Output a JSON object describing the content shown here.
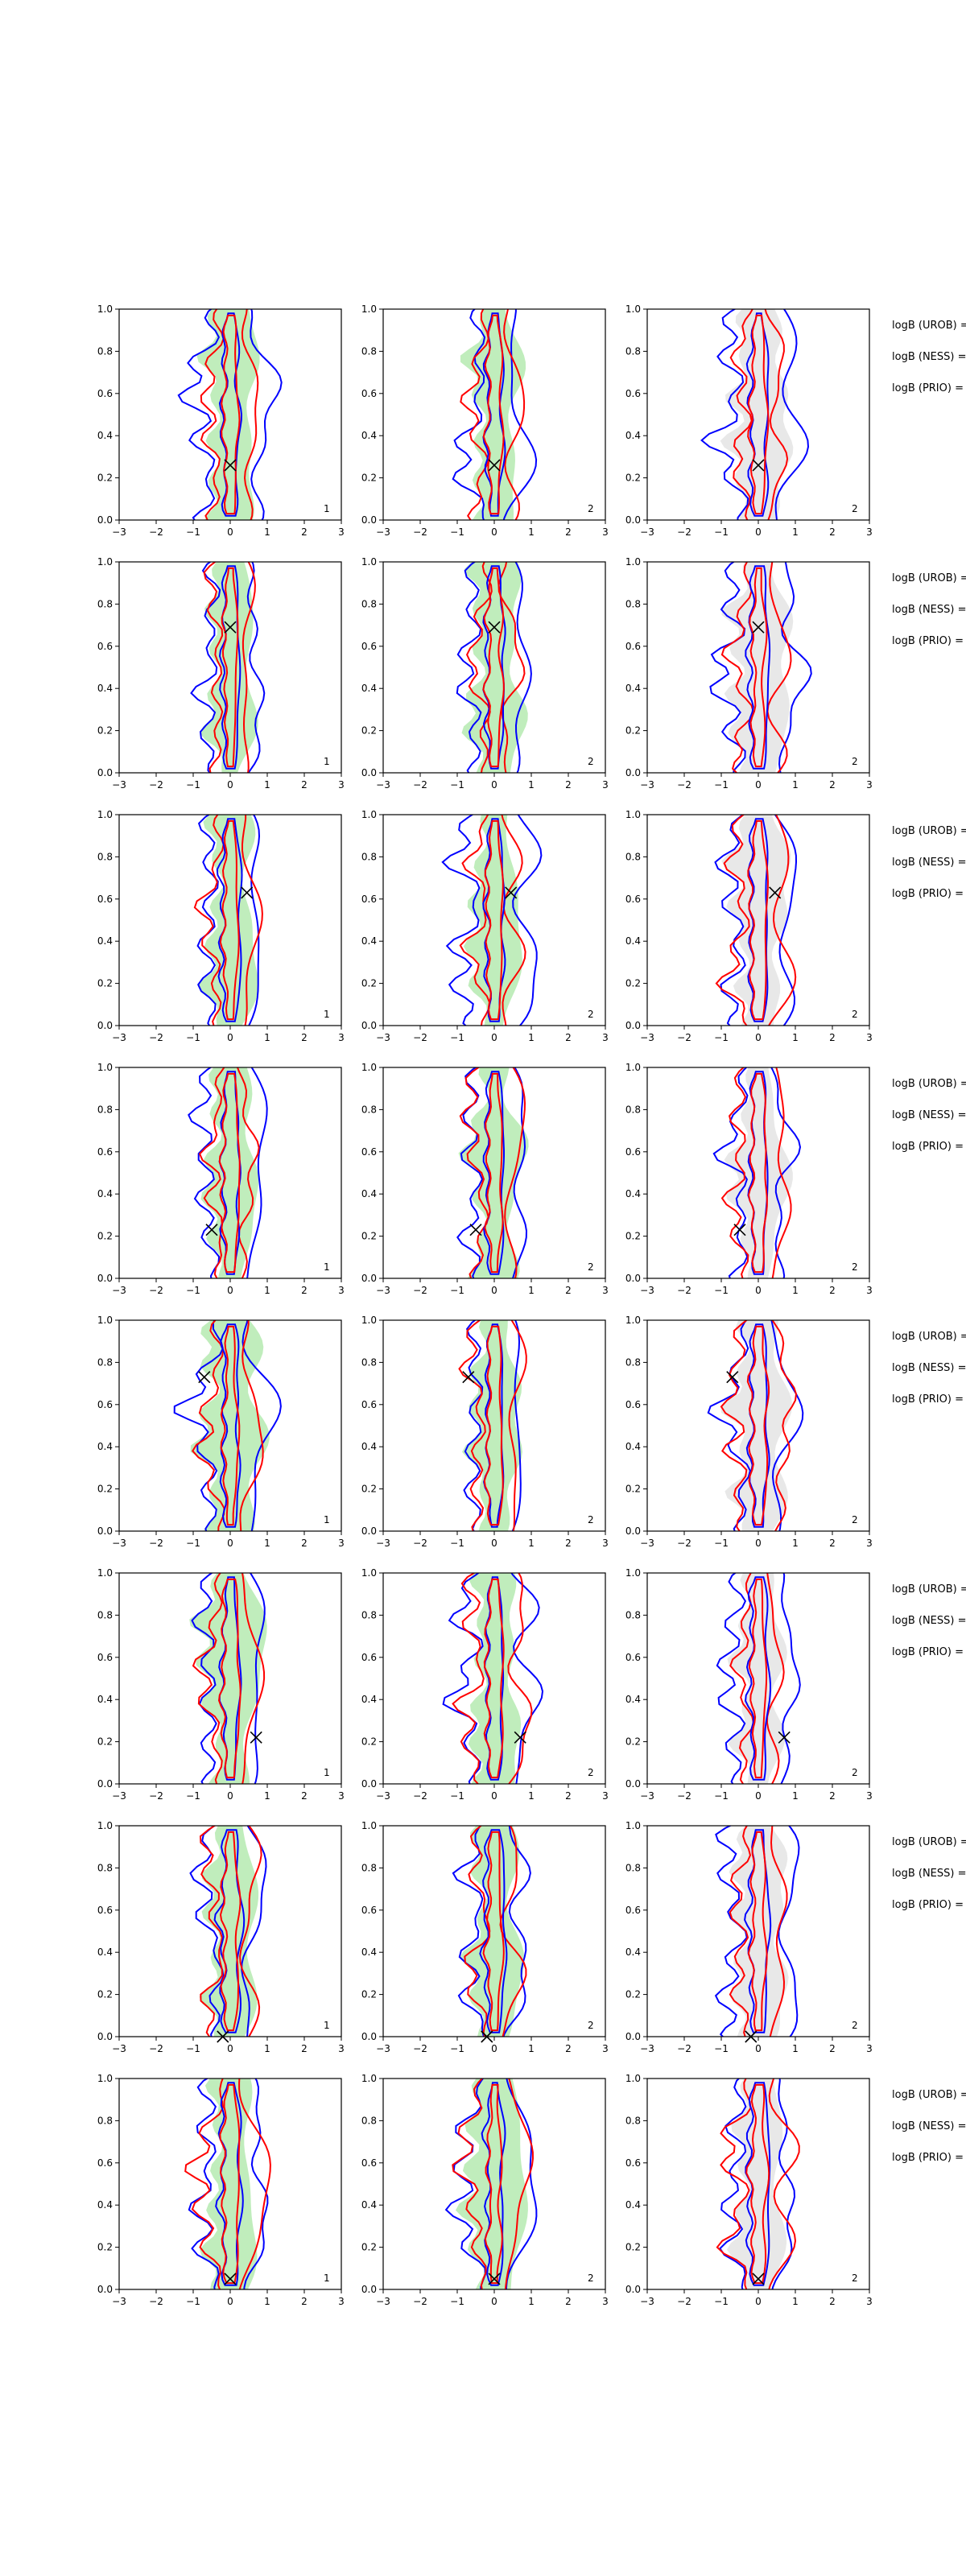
{
  "colors": {
    "blue": "#0000ff",
    "red": "#ff0000",
    "green_fill": "#b9ebb5",
    "gray_fill": "#e6e6e6",
    "marker": "#000000",
    "axis": "#000000"
  },
  "chart_data": {
    "type": "grid_of_violin_contour_plots",
    "rows": 8,
    "columns": 3,
    "xlim": [
      -3,
      3
    ],
    "ylim": [
      0.0,
      1.0
    ],
    "x_ticks": [
      "−3",
      "−2",
      "−1",
      "0",
      "1",
      "2",
      "3"
    ],
    "y_ticks": [
      "0.0",
      "0.2",
      "0.4",
      "0.6",
      "0.8",
      "1.0"
    ],
    "panel_numbers": [
      "1",
      "2",
      "2"
    ],
    "column_fill": [
      "green",
      "green",
      "gray"
    ],
    "marker": "x",
    "markers": [
      {
        "x": 0.0,
        "y": 0.26
      },
      {
        "x": 0.0,
        "y": 0.69
      },
      {
        "x": 0.45,
        "y": 0.63
      },
      {
        "x": -0.5,
        "y": 0.23
      },
      {
        "x": -0.7,
        "y": 0.73
      },
      {
        "x": 0.7,
        "y": 0.22
      },
      {
        "x": -0.2,
        "y": 0.0
      },
      {
        "x": 0.0,
        "y": 0.05
      }
    ],
    "row_labels": [
      "logB (UROB) =",
      "logB (NESS) =",
      "logB (PRIO) ="
    ]
  }
}
